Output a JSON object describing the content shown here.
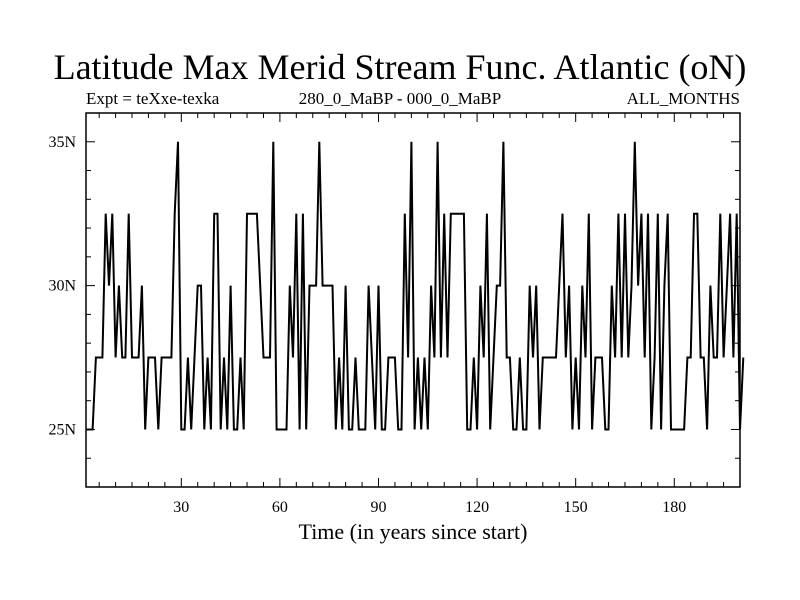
{
  "chart_data": {
    "type": "line",
    "title": "Latitude Max Merid Stream Func. Atlantic (oN)",
    "subtitle_left": "Expt = teXxe-texka",
    "subtitle_center": "280_0_MaBP - 000_0_MaBP",
    "subtitle_right": "ALL_MONTHS",
    "xlabel": "Time (in years since start)",
    "ylabel": "",
    "xlim": [
      1,
      200
    ],
    "ylim": [
      23,
      36
    ],
    "x_ticks": [
      30,
      60,
      90,
      120,
      150,
      180
    ],
    "y_ticks": [
      {
        "value": 25,
        "label": "25N"
      },
      {
        "value": 30,
        "label": "30N"
      },
      {
        "value": 35,
        "label": "35N"
      }
    ],
    "series": [
      {
        "values": [
          25,
          25,
          25,
          27.5,
          27.5,
          27.5,
          32.5,
          30,
          32.5,
          27.5,
          30,
          27.5,
          27.5,
          32.5,
          27.5,
          27.5,
          27.5,
          30,
          25,
          27.5,
          27.5,
          27.5,
          25,
          27.5,
          27.5,
          27.5,
          27.5,
          32.5,
          35,
          25,
          25,
          27.5,
          25,
          27.5,
          30,
          30,
          25,
          27.5,
          25,
          32.5,
          32.5,
          25,
          27.5,
          25,
          30,
          25,
          25,
          27.5,
          25,
          32.5,
          32.5,
          32.5,
          32.5,
          30,
          27.5,
          27.5,
          27.5,
          35,
          25,
          25,
          25,
          25,
          30,
          27.5,
          32.5,
          25,
          32.5,
          25,
          30,
          30,
          30,
          35,
          30,
          30,
          30,
          30,
          25,
          27.5,
          25,
          30,
          25,
          25,
          27.5,
          25,
          25,
          25,
          30,
          27.5,
          25,
          30,
          25,
          25,
          27.5,
          27.5,
          27.5,
          25,
          25,
          32.5,
          27.5,
          35,
          25,
          27.5,
          25,
          27.5,
          25,
          30,
          27.5,
          35,
          27.5,
          32.5,
          27.5,
          32.5,
          32.5,
          32.5,
          32.5,
          32.5,
          25,
          25,
          27.5,
          25,
          30,
          27.5,
          32.5,
          25,
          27.5,
          30,
          30,
          35,
          27.5,
          27.5,
          25,
          25,
          27.5,
          25,
          25,
          30,
          27.5,
          30,
          25,
          27.5,
          27.5,
          27.5,
          27.5,
          27.5,
          30,
          32.5,
          27.5,
          30,
          25,
          27.5,
          25,
          30,
          27.5,
          32.5,
          25,
          27.5,
          27.5,
          27.5,
          25,
          25,
          30,
          27.5,
          32.5,
          27.5,
          32.5,
          27.5,
          30,
          35,
          30,
          32.5,
          27.5,
          32.5,
          25,
          27.5,
          32.5,
          25,
          30,
          32.5,
          25,
          25,
          25,
          25,
          25,
          27.5,
          27.5,
          32.5,
          32.5,
          27.5,
          27.5,
          25,
          30,
          27.5,
          27.5,
          32.5,
          27.5,
          30,
          32.5,
          27.5,
          32.5,
          25,
          27.5
        ]
      }
    ]
  }
}
